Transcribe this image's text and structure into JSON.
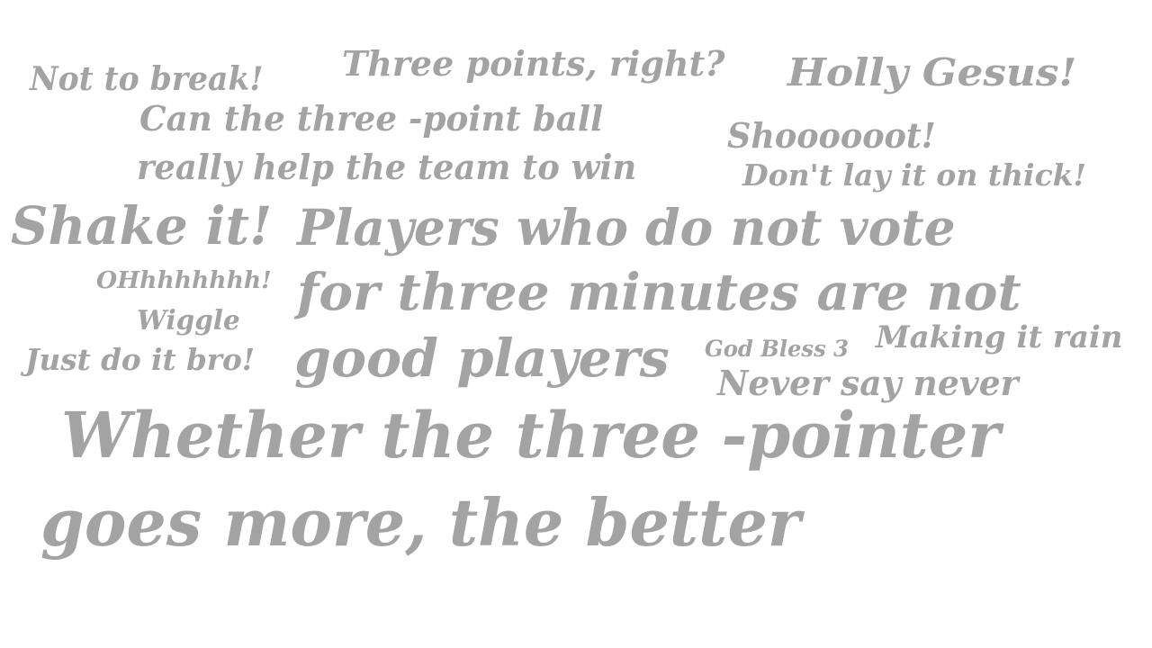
{
  "colors": {
    "text": "#a3a3a3",
    "background": "#ffffff"
  },
  "phrases": [
    "Not  to break!",
    "Three points, right?",
    "Holly Gesus!",
    "Can the three -point ball",
    "Shoooooot!",
    "really help the team to win",
    "Don't lay it on thick!",
    "Shake it!",
    "Players who do not vote",
    "OHhhhhhhh!",
    "for three minutes are not",
    "Wiggle",
    "Just do it bro!",
    "good players",
    "God Bless 3",
    "Making it rain",
    "Never say never",
    "Whether the three -pointer",
    "goes more, the better"
  ]
}
